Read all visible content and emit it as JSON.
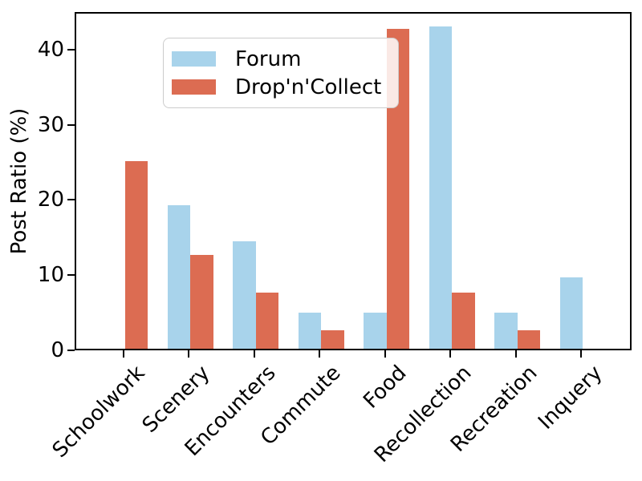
{
  "chart_data": {
    "type": "bar",
    "title": "",
    "xlabel": "",
    "ylabel": "Post Ratio (%)",
    "categories": [
      "Schoolwork",
      "Scenery",
      "Encounters",
      "Commute",
      "Food",
      "Recollection",
      "Recreation",
      "Inquery"
    ],
    "series": [
      {
        "name": "Forum",
        "color": "#A8D3EB",
        "values": [
          0,
          19.05,
          14.29,
          4.76,
          4.76,
          42.86,
          4.76,
          9.52
        ]
      },
      {
        "name": "Drop'n'Collect",
        "color": "#DC6C52",
        "values": [
          25,
          12.5,
          7.5,
          2.5,
          42.5,
          7.5,
          2.5,
          0
        ]
      }
    ],
    "ylim": [
      0,
      45
    ],
    "yticks": [
      0,
      10,
      20,
      30,
      40
    ],
    "grid": false,
    "legend_position": "upper left",
    "tick_label_rotation": 45,
    "axis_color": "#000000"
  }
}
